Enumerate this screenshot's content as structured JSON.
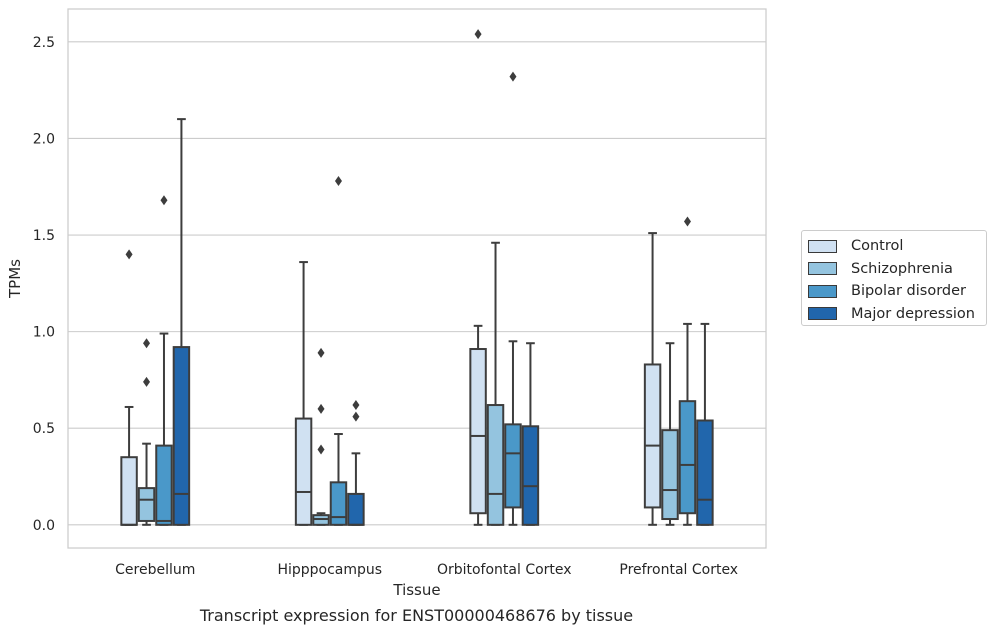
{
  "chart_data": {
    "type": "box",
    "title": "Transcript expression for ENST00000468676 by tissue",
    "xlabel": "Tissue",
    "ylabel": "TPMs",
    "ylim": [
      -0.12,
      2.67
    ],
    "yticks": [
      "0.0",
      "0.5",
      "1.0",
      "1.5",
      "2.0",
      "2.5"
    ],
    "grid": true,
    "legend_position": "right",
    "categories": [
      "Cerebellum",
      "Hipppocampus",
      "Orbitofontal Cortex",
      "Prefrontal Cortex"
    ],
    "series": [
      {
        "name": "Control",
        "color": "#d0e1f2",
        "boxes": [
          {
            "whislo": 0.0,
            "q1": 0.0,
            "med": 0.0,
            "q3": 0.35,
            "whishi": 0.61,
            "fliers": [
              1.4
            ]
          },
          {
            "whislo": 0.0,
            "q1": 0.0,
            "med": 0.17,
            "q3": 0.55,
            "whishi": 1.36,
            "fliers": []
          },
          {
            "whislo": 0.0,
            "q1": 0.06,
            "med": 0.46,
            "q3": 0.91,
            "whishi": 1.03,
            "fliers": [
              2.54
            ]
          },
          {
            "whislo": 0.0,
            "q1": 0.09,
            "med": 0.41,
            "q3": 0.83,
            "whishi": 1.51,
            "fliers": []
          }
        ]
      },
      {
        "name": "Schizophrenia",
        "color": "#94c4df",
        "boxes": [
          {
            "whislo": 0.0,
            "q1": 0.02,
            "med": 0.13,
            "q3": 0.19,
            "whishi": 0.42,
            "fliers": [
              0.74,
              0.94
            ]
          },
          {
            "whislo": 0.0,
            "q1": 0.0,
            "med": 0.03,
            "q3": 0.05,
            "whishi": 0.06,
            "fliers": [
              0.39,
              0.6,
              0.89
            ]
          },
          {
            "whislo": 0.0,
            "q1": 0.0,
            "med": 0.16,
            "q3": 0.62,
            "whishi": 1.46,
            "fliers": []
          },
          {
            "whislo": 0.0,
            "q1": 0.03,
            "med": 0.18,
            "q3": 0.49,
            "whishi": 0.94,
            "fliers": []
          }
        ]
      },
      {
        "name": "Bipolar disorder",
        "color": "#4a98c9",
        "boxes": [
          {
            "whislo": 0.0,
            "q1": 0.0,
            "med": 0.02,
            "q3": 0.41,
            "whishi": 0.99,
            "fliers": [
              1.68
            ]
          },
          {
            "whislo": 0.0,
            "q1": 0.0,
            "med": 0.04,
            "q3": 0.22,
            "whishi": 0.47,
            "fliers": [
              1.78
            ]
          },
          {
            "whislo": 0.0,
            "q1": 0.09,
            "med": 0.37,
            "q3": 0.52,
            "whishi": 0.95,
            "fliers": [
              2.32
            ]
          },
          {
            "whislo": 0.0,
            "q1": 0.06,
            "med": 0.31,
            "q3": 0.64,
            "whishi": 1.04,
            "fliers": [
              1.57
            ]
          }
        ]
      },
      {
        "name": "Major depression",
        "color": "#2166ac",
        "boxes": [
          {
            "whislo": 0.0,
            "q1": 0.0,
            "med": 0.16,
            "q3": 0.92,
            "whishi": 2.1,
            "fliers": []
          },
          {
            "whislo": 0.0,
            "q1": 0.0,
            "med": 0.0,
            "q3": 0.16,
            "whishi": 0.37,
            "fliers": [
              0.56,
              0.62
            ]
          },
          {
            "whislo": 0.0,
            "q1": 0.0,
            "med": 0.2,
            "q3": 0.51,
            "whishi": 0.94,
            "fliers": []
          },
          {
            "whislo": 0.0,
            "q1": 0.0,
            "med": 0.13,
            "q3": 0.54,
            "whishi": 1.04,
            "fliers": []
          }
        ]
      }
    ]
  }
}
